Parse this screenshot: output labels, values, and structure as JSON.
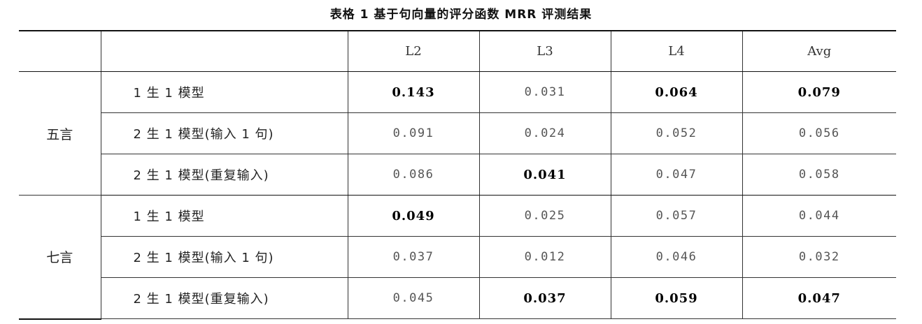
{
  "caption": "表格 1  基于句向量的评分函数 MRR 评测结果",
  "columns": [
    "L2",
    "L3",
    "L4",
    "Avg"
  ],
  "groups": [
    {
      "name": "五言",
      "rows": [
        {
          "model": "1 生 1 模型",
          "values": [
            "0.143",
            "0.031",
            "0.064",
            "0.079"
          ],
          "bold": [
            true,
            false,
            true,
            true
          ]
        },
        {
          "model": "2 生 1 模型(输入 1 句)",
          "values": [
            "0.091",
            "0.024",
            "0.052",
            "0.056"
          ],
          "bold": [
            false,
            false,
            false,
            false
          ]
        },
        {
          "model": "2 生 1 模型(重复输入)",
          "values": [
            "0.086",
            "0.041",
            "0.047",
            "0.058"
          ],
          "bold": [
            false,
            true,
            false,
            false
          ]
        }
      ]
    },
    {
      "name": "七言",
      "rows": [
        {
          "model": "1 生 1 模型",
          "values": [
            "0.049",
            "0.025",
            "0.057",
            "0.044"
          ],
          "bold": [
            true,
            false,
            false,
            false
          ]
        },
        {
          "model": "2 生 1 模型(输入 1 句)",
          "values": [
            "0.037",
            "0.012",
            "0.046",
            "0.032"
          ],
          "bold": [
            false,
            false,
            false,
            false
          ]
        },
        {
          "model": "2 生 1 模型(重复输入)",
          "values": [
            "0.045",
            "0.037",
            "0.059",
            "0.047"
          ],
          "bold": [
            false,
            true,
            true,
            true
          ]
        }
      ]
    }
  ]
}
